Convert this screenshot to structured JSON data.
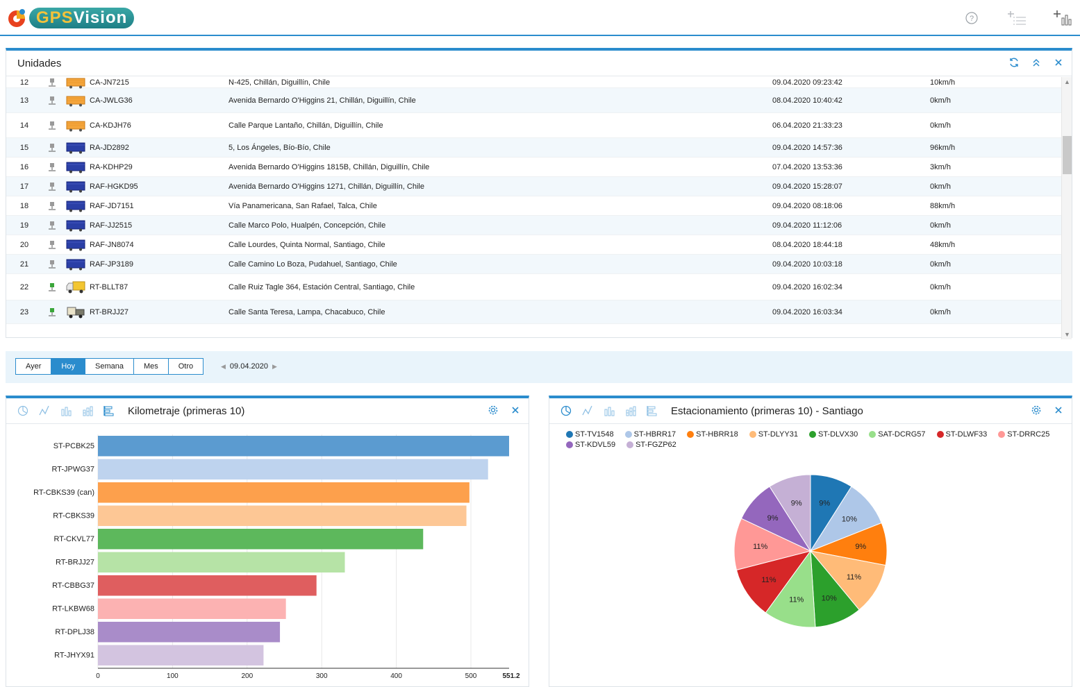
{
  "app": {
    "logo_gps": "GPS",
    "logo_vision": "Vision"
  },
  "top_icons": [
    "help-icon",
    "add-list-icon",
    "add-chart-icon"
  ],
  "units_panel": {
    "title": "Unidades",
    "rows": [
      {
        "num": "12",
        "status": "grey",
        "vehicle": "orange-trailer",
        "plate": "CA-JN7215",
        "address": "N-425, Chillán, Diguillín, Chile",
        "date": "09.04.2020 09:23:42",
        "speed": "10km/h"
      },
      {
        "num": "13",
        "status": "grey",
        "vehicle": "orange-trailer",
        "plate": "CA-JWLG36",
        "address": "Avenida Bernardo O'Higgins 21, Chillán, Diguillín, Chile",
        "date": "08.04.2020 10:40:42",
        "speed": "0km/h"
      },
      {
        "num": "14",
        "status": "grey",
        "vehicle": "orange-trailer",
        "plate": "CA-KDJH76",
        "address": "Calle Parque Lantaño, Chillán, Diguillín, Chile",
        "date": "06.04.2020 21:33:23",
        "speed": "0km/h"
      },
      {
        "num": "15",
        "status": "grey",
        "vehicle": "blue-trailer",
        "plate": "RA-JD2892",
        "address": "5, Los Ángeles, Bío-Bío, Chile",
        "date": "09.04.2020 14:57:36",
        "speed": "96km/h"
      },
      {
        "num": "16",
        "status": "grey",
        "vehicle": "blue-trailer",
        "plate": "RA-KDHP29",
        "address": "Avenida Bernardo O'Higgins 1815B, Chillán, Diguillín, Chile",
        "date": "07.04.2020 13:53:36",
        "speed": "3km/h"
      },
      {
        "num": "17",
        "status": "grey",
        "vehicle": "blue-trailer",
        "plate": "RAF-HGKD95",
        "address": "Avenida Bernardo O'Higgins 1271, Chillán, Diguillín, Chile",
        "date": "09.04.2020 15:28:07",
        "speed": "0km/h"
      },
      {
        "num": "18",
        "status": "grey",
        "vehicle": "blue-trailer",
        "plate": "RAF-JD7151",
        "address": "Vía Panamericana, San Rafael, Talca, Chile",
        "date": "09.04.2020 08:18:06",
        "speed": "88km/h"
      },
      {
        "num": "19",
        "status": "grey",
        "vehicle": "blue-trailer",
        "plate": "RAF-JJ2515",
        "address": "Calle Marco Polo, Hualpén, Concepción, Chile",
        "date": "09.04.2020 11:12:06",
        "speed": "0km/h"
      },
      {
        "num": "20",
        "status": "grey",
        "vehicle": "blue-trailer",
        "plate": "RAF-JN8074",
        "address": "Calle Lourdes, Quinta Normal, Santiago, Chile",
        "date": "08.04.2020 18:44:18",
        "speed": "48km/h"
      },
      {
        "num": "21",
        "status": "grey",
        "vehicle": "blue-trailer",
        "plate": "RAF-JP3189",
        "address": "Calle Camino Lo Boza, Pudahuel, Santiago, Chile",
        "date": "09.04.2020 10:03:18",
        "speed": "0km/h"
      },
      {
        "num": "22",
        "status": "green",
        "vehicle": "yellow-truck",
        "plate": "RT-BLLT87",
        "address": "Calle Ruiz Tagle 364, Estación Central, Santiago, Chile",
        "date": "09.04.2020 16:02:34",
        "speed": "0km/h"
      },
      {
        "num": "23",
        "status": "green",
        "vehicle": "tow-truck",
        "plate": "RT-BRJJ27",
        "address": "Calle Santa Teresa, Lampa, Chacabuco, Chile",
        "date": "09.04.2020 16:03:34",
        "speed": "0km/h"
      }
    ]
  },
  "period": {
    "buttons": [
      "Ayer",
      "Hoy",
      "Semana",
      "Mes",
      "Otro"
    ],
    "active": "Hoy",
    "date": "09.04.2020"
  },
  "km_panel": {
    "title": "Kilometraje (primeras 10)",
    "chart_data": {
      "type": "bar",
      "orientation": "horizontal",
      "categories": [
        "ST-PCBK25",
        "RT-JPWG37",
        "RT-CBKS39 (can)",
        "RT-CBKS39",
        "RT-CKVL77",
        "RT-BRJJ27",
        "RT-CBBG37",
        "RT-LKBW68",
        "RT-DPLJ38",
        "RT-JHYX91"
      ],
      "values": [
        551.2,
        523,
        498,
        494,
        436,
        331,
        293,
        252,
        244,
        222
      ],
      "colors": [
        "#5b9bd0",
        "#bed3ee",
        "#fda04c",
        "#fdc795",
        "#5db85c",
        "#b6e3a6",
        "#df5e5f",
        "#fcb2b2",
        "#a98cc9",
        "#d3c4e0"
      ],
      "xticks": [
        "0",
        "100",
        "200",
        "300",
        "400",
        "500",
        "551.2"
      ],
      "xlim": [
        0,
        551.2
      ],
      "grid": true
    }
  },
  "park_panel": {
    "title": "Estacionamiento (primeras 10) - Santiago",
    "chart_data": {
      "type": "pie",
      "labels": [
        "ST-TV1548",
        "ST-HBRR17",
        "ST-HBRR18",
        "ST-DLYY31",
        "ST-DLVX30",
        "SAT-DCRG57",
        "ST-DLWF33",
        "ST-DRRC25",
        "ST-KDVL59",
        "ST-FGZP62"
      ],
      "values": [
        9,
        10,
        9,
        11,
        10,
        11,
        11,
        11,
        9,
        9
      ],
      "value_labels": [
        "9%",
        "10%",
        "9%",
        "11%",
        "10%",
        "11%",
        "11%",
        "11%",
        "9%",
        "9%"
      ],
      "colors": [
        "#1f77b4",
        "#aec7e8",
        "#ff7f0e",
        "#ffbb78",
        "#2ca02c",
        "#98df8a",
        "#d62728",
        "#ff9896",
        "#9467bd",
        "#c5b0d5"
      ],
      "legend": "top"
    }
  }
}
